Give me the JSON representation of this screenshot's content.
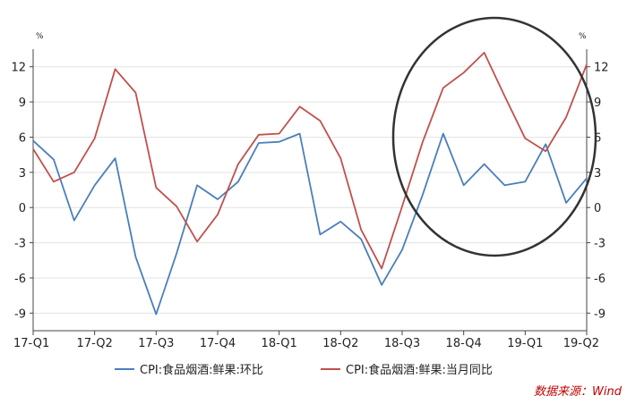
{
  "chart_data": {
    "type": "line",
    "x": [
      "17-Q1",
      "",
      "",
      "17-Q2",
      "",
      "",
      "17-Q3",
      "",
      "",
      "17-Q4",
      "",
      "",
      "18-Q1",
      "",
      "",
      "18-Q2",
      "",
      "",
      "18-Q3",
      "",
      "",
      "18-Q4",
      "",
      "",
      "19-Q1",
      "",
      "",
      "19-Q2"
    ],
    "x_tick_labels": [
      "17-Q1",
      "17-Q2",
      "17-Q3",
      "17-Q4",
      "18-Q1",
      "18-Q2",
      "18-Q3",
      "18-Q4",
      "19-Q1",
      "19-Q2"
    ],
    "y_unit_left": "%",
    "y_unit_right": "%",
    "ylim": [
      -10.5,
      13.5
    ],
    "y_ticks": [
      12,
      9,
      6,
      3,
      0,
      -3,
      -6,
      -9
    ],
    "grid": true,
    "legend_position": "bottom",
    "series": [
      {
        "name": "CPI:食品烟酒:鲜果:环比",
        "color": "#4a7ebb",
        "values": [
          5.7,
          4.1,
          -1.1,
          1.9,
          4.2,
          -4.2,
          -9.1,
          -3.9,
          1.9,
          0.7,
          2.2,
          5.5,
          5.6,
          6.3,
          -2.3,
          -1.2,
          -2.7,
          -6.6,
          -3.6,
          1.1,
          6.3,
          1.9,
          3.7,
          1.9,
          2.2,
          5.4,
          0.4,
          2.5
        ]
      },
      {
        "name": "CPI:食品烟酒:鲜果:当月同比",
        "color": "#c0504d",
        "values": [
          5.0,
          2.2,
          3.0,
          5.9,
          11.8,
          9.8,
          1.7,
          0.1,
          -2.9,
          -0.6,
          3.7,
          6.2,
          6.3,
          8.6,
          7.4,
          4.2,
          -1.9,
          -5.2,
          0.1,
          5.6,
          10.2,
          11.5,
          13.2,
          9.5,
          5.9,
          4.8,
          7.7,
          12.2
        ]
      }
    ],
    "annotation_circle": true,
    "source": "数据来源：Wind"
  }
}
